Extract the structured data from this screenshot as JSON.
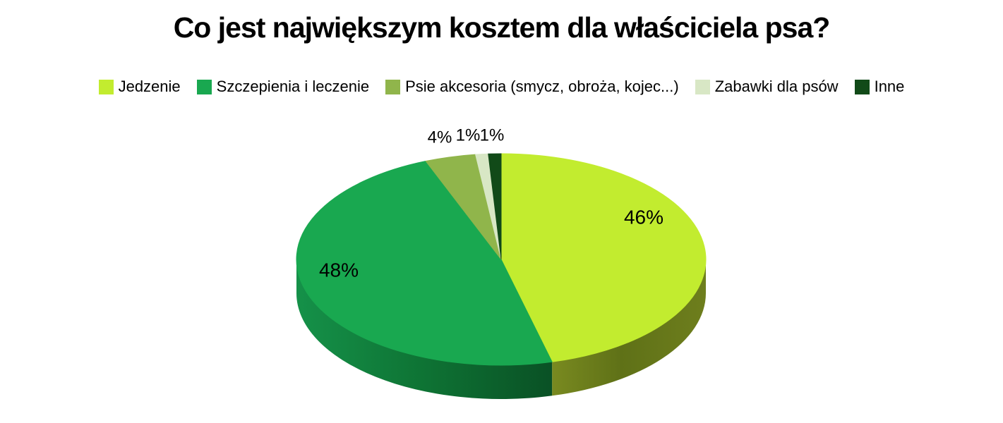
{
  "chart_data": {
    "type": "pie",
    "style": "3d",
    "title": "Co jest największym kosztem dla właściciela psa?",
    "legend_position": "top",
    "background_color": "#ffffff",
    "text_color": "#000000",
    "total": 100,
    "series": [
      {
        "name": "Jedzenie",
        "value": 46,
        "label": "46%",
        "color": "#c2ec2f",
        "side_gradient": [
          [
            "0%",
            "#798a20"
          ],
          [
            "45%",
            "#5f7117"
          ],
          [
            "100%",
            "#6e7e1d"
          ]
        ],
        "label_placement": "inside",
        "label_pos": {
          "x": 912,
          "y": 308
        }
      },
      {
        "name": "Szczepienia i leczenie",
        "value": 48,
        "label": "48%",
        "color": "#19a850",
        "side_gradient": [
          [
            "0%",
            "#159149"
          ],
          [
            "50%",
            "#0e7334"
          ],
          [
            "100%",
            "#0a5125"
          ]
        ],
        "label_placement": "inside",
        "label_pos": {
          "x": 480,
          "y": 383
        }
      },
      {
        "name": "Psie akcesoria (smycz, obroża, kojec...)",
        "value": 4,
        "label": "4%",
        "color": "#90b54b",
        "label_placement": "outside",
        "label_pos": {
          "x": 623,
          "y": 195
        }
      },
      {
        "name": "Zabawki dla psów",
        "value": 1,
        "label": "1%",
        "color": "#d8e7c5",
        "label_placement": "outside",
        "label_pos": {
          "x": 663,
          "y": 192
        }
      },
      {
        "name": "Inne",
        "value": 1,
        "label": "1%",
        "color": "#114a18",
        "label_placement": "outside",
        "label_pos": {
          "x": 697,
          "y": 192
        }
      }
    ],
    "geometry": {
      "cx": 710,
      "cy": 368,
      "rx": 290,
      "ry": 150,
      "depth": 48,
      "start_angle_deg": 0,
      "clockwise": true
    }
  }
}
